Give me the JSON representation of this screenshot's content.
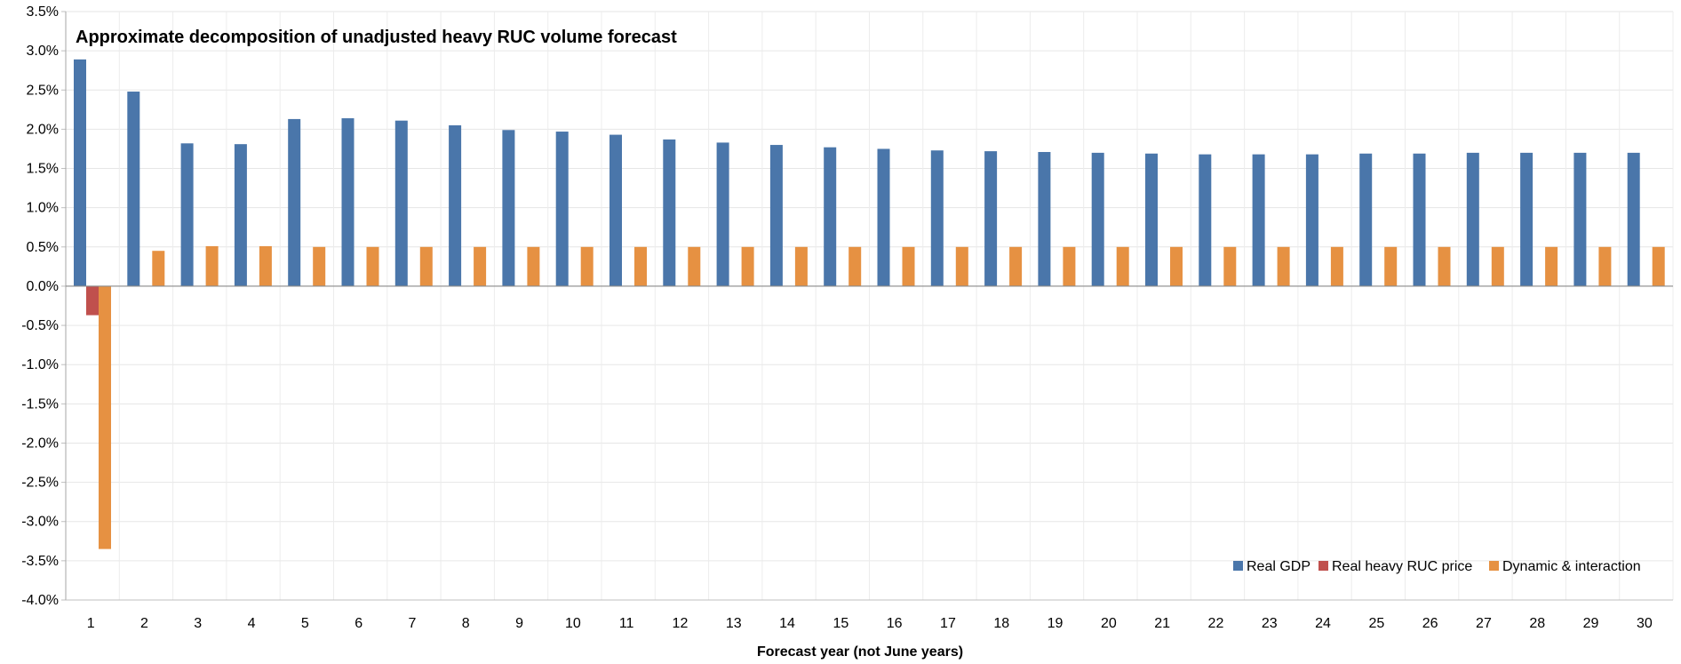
{
  "chart_data": {
    "type": "bar",
    "title": "Approximate decomposition of unadjusted heavy RUC volume forecast",
    "xlabel": "Forecast year (not June years)",
    "ylabel": "",
    "ylim": [
      -4.0,
      3.5
    ],
    "ytick_step": 0.5,
    "ytick_format": "percent-1dp",
    "grid": true,
    "legend_position": "bottom-right",
    "categories": [
      "1",
      "2",
      "3",
      "4",
      "5",
      "6",
      "7",
      "8",
      "9",
      "10",
      "11",
      "12",
      "13",
      "14",
      "15",
      "16",
      "17",
      "18",
      "19",
      "20",
      "21",
      "22",
      "23",
      "24",
      "25",
      "26",
      "27",
      "28",
      "29",
      "30"
    ],
    "series": [
      {
        "name": "Real GDP",
        "color": "#4a76aa",
        "values": [
          2.89,
          2.48,
          1.82,
          1.81,
          2.13,
          2.14,
          2.11,
          2.05,
          1.99,
          1.97,
          1.93,
          1.87,
          1.83,
          1.8,
          1.77,
          1.75,
          1.73,
          1.72,
          1.71,
          1.7,
          1.69,
          1.68,
          1.68,
          1.68,
          1.69,
          1.69,
          1.7,
          1.7,
          1.7,
          1.7
        ]
      },
      {
        "name": "Real heavy RUC price",
        "color": "#c0504d",
        "values": [
          -0.37,
          0,
          0,
          0,
          0,
          0,
          0,
          0,
          0,
          0,
          0,
          0,
          0,
          0,
          0,
          0,
          0,
          0,
          0,
          0,
          0,
          0,
          0,
          0,
          0,
          0,
          0,
          0,
          0,
          0
        ]
      },
      {
        "name": "Dynamic & interaction",
        "color": "#e69142",
        "values": [
          -3.35,
          0.45,
          0.51,
          0.51,
          0.5,
          0.5,
          0.5,
          0.5,
          0.5,
          0.5,
          0.5,
          0.5,
          0.5,
          0.5,
          0.5,
          0.5,
          0.5,
          0.5,
          0.5,
          0.5,
          0.5,
          0.5,
          0.5,
          0.5,
          0.5,
          0.5,
          0.5,
          0.5,
          0.5,
          0.5
        ]
      }
    ]
  }
}
